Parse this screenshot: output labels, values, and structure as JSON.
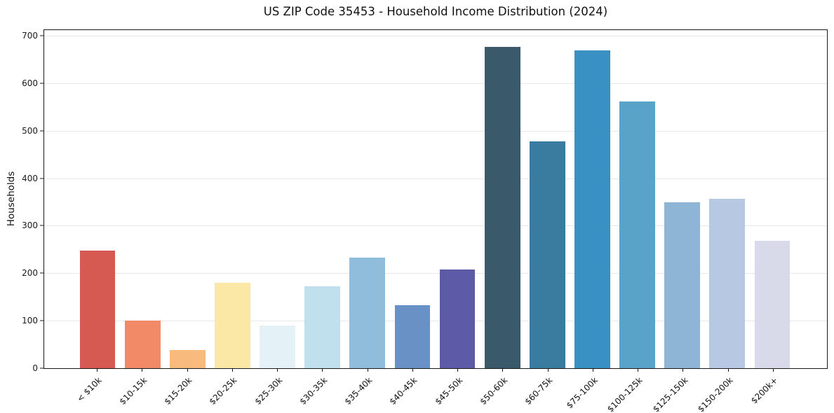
{
  "chart_data": {
    "type": "bar",
    "title": "US ZIP Code 35453 - Household Income Distribution (2024)",
    "xlabel": "",
    "ylabel": "Households",
    "categories": [
      "< $10k",
      "$10-15k",
      "$15-20k",
      "$20-25k",
      "$25-30k",
      "$30-35k",
      "$35-40k",
      "$40-45k",
      "$45-50k",
      "$50-60k",
      "$60-75k",
      "$75-100k",
      "$100-125k",
      "$125-150k",
      "$150-200k",
      "$200k+"
    ],
    "values": [
      248,
      101,
      38,
      180,
      90,
      172,
      233,
      133,
      208,
      676,
      477,
      670,
      562,
      349,
      357,
      269
    ],
    "bar_colors": [
      "#d65952",
      "#f28a68",
      "#f9ba7e",
      "#fce8a6",
      "#e4f2f8",
      "#bfe0ec",
      "#91bddc",
      "#6991c6",
      "#5d5aa8",
      "#3a5a6c",
      "#3a7ba0",
      "#3990c2",
      "#5aa3c8",
      "#8eb4d6",
      "#b6c8e2",
      "#d8daea"
    ],
    "yticks": [
      0,
      100,
      200,
      300,
      400,
      500,
      600,
      700
    ],
    "ylim": [
      0,
      712
    ],
    "grid": "horizontal",
    "gridline_color": "#e7e7e7",
    "legend": "none"
  }
}
